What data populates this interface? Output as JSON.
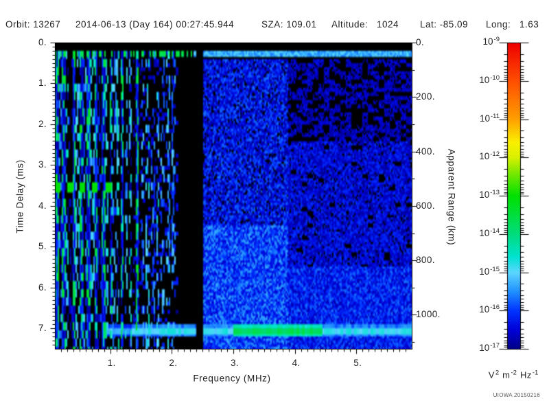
{
  "header": {
    "segments": [
      "Orbit: 13267",
      "2014-06-13 (Day 164) 00:27:45.944",
      "SZA: 109.01",
      "Altitude:   1024",
      "Lat: -85.09",
      "Long:   1.63"
    ]
  },
  "footer": {
    "credit": "UIOWA 20150216"
  },
  "chart_data": {
    "type": "heatmap",
    "title": "",
    "xlabel": "Frequency (MHz)",
    "ylabel_left": "Time Delay (ms)",
    "ylabel_right": "Apparent Range (km)",
    "x_range_mhz": [
      0.1,
      5.9
    ],
    "x_major_ticks": [
      1,
      2,
      3,
      4,
      5
    ],
    "x_tick_labels": [
      "1.",
      "2.",
      "3.",
      "4.",
      "5."
    ],
    "x_minor_step_mhz": 0.1,
    "y_range_ms": [
      0,
      7.5
    ],
    "y_major_ticks_ms": [
      0,
      1,
      2,
      3,
      4,
      5,
      6,
      7
    ],
    "y_tick_labels": [
      "0.",
      "1.",
      "2.",
      "3.",
      "4.",
      "5.",
      "6.",
      "7."
    ],
    "y_minor_step_ms": 0.1,
    "y2_range_km": [
      0,
      1125
    ],
    "y2_major_ticks_km": [
      0,
      200,
      400,
      600,
      800,
      1000
    ],
    "y2_tick_labels": [
      "0.",
      "200.",
      "400.",
      "600.",
      "800.",
      "1000."
    ],
    "y2_minor_step_km": 100,
    "grid": false,
    "colorbar": {
      "scale": "log10",
      "range_exponents": [
        -17,
        -9
      ],
      "tick_exponents": [
        -9,
        -10,
        -11,
        -12,
        -13,
        -14,
        -15,
        -16,
        -17
      ],
      "tick_base": "10",
      "unit_parts": [
        [
          "V",
          "2"
        ],
        [
          "m",
          "-2"
        ],
        [
          "Hz",
          "-1"
        ]
      ],
      "colormap_stops": [
        [
          -17.0,
          "#000085"
        ],
        [
          -16.5,
          "#0000d8"
        ],
        [
          -16.0,
          "#0033ff"
        ],
        [
          -15.5,
          "#2090ff"
        ],
        [
          -15.0,
          "#5cd6ff"
        ],
        [
          -14.6,
          "#00e2d2"
        ],
        [
          -14.0,
          "#00dc7e"
        ],
        [
          -13.0,
          "#00e000"
        ],
        [
          -12.4,
          "#7ae800"
        ],
        [
          -12.0,
          "#d8f000"
        ],
        [
          -11.6,
          "#faf000"
        ],
        [
          -11.0,
          "#ffa000"
        ],
        [
          -10.0,
          "#ff4e00"
        ],
        [
          -9.0,
          "#ee0000"
        ]
      ],
      "below_min_color": "#000000"
    },
    "features": {
      "top_black_band_ms": [
        0,
        0.2
      ],
      "ionosphere_line": {
        "t_ms": [
          0.22,
          0.36
        ],
        "bright_to_mhz": 2.35,
        "bright_exp": -13.6,
        "faint_exp": -15.3
      },
      "interference_gap_mhz": [
        2.4,
        2.52
      ],
      "stripe_region": {
        "f_end_mhz": 2.1,
        "speckle_from_mhz": 1.38,
        "stripes": [
          [
            0.13,
            -13.0
          ],
          [
            0.19,
            -15.2
          ],
          [
            0.25,
            -13.2
          ],
          [
            0.3,
            -14.2
          ],
          [
            0.36,
            -16.2
          ],
          [
            0.42,
            -13.1
          ],
          [
            0.47,
            -14.5
          ],
          [
            0.53,
            -13.2
          ],
          [
            0.59,
            -15.0
          ],
          [
            0.65,
            -13.1
          ],
          [
            0.71,
            -14.4
          ],
          [
            0.77,
            -13.3
          ],
          [
            0.83,
            -15.8
          ],
          [
            0.89,
            -13.2
          ],
          [
            0.95,
            -14.4
          ],
          [
            1.01,
            -13.5
          ],
          [
            1.07,
            -14.9
          ],
          [
            1.13,
            -14.1
          ],
          [
            1.19,
            -13.4
          ],
          [
            1.26,
            -14.7
          ],
          [
            1.33,
            -14.0
          ],
          [
            1.44,
            -13.0
          ],
          [
            1.53,
            -14.9
          ],
          [
            1.61,
            -14.4
          ],
          [
            1.69,
            -15.1
          ],
          [
            1.77,
            -14.6
          ],
          [
            1.85,
            -15.0
          ],
          [
            1.94,
            -14.7
          ],
          [
            2.03,
            -14.9
          ]
        ]
      },
      "green_blob_row": {
        "t_ms": 3.55,
        "freqs_mhz": [
          0.14,
          0.35,
          0.55,
          0.75,
          0.97
        ],
        "exp": -13.05
      },
      "surface_echo": {
        "t_ms": [
          6.92,
          7.22
        ],
        "f_start_mhz": 0.95,
        "base_exp": -14.9,
        "bright_band_mhz": [
          3.0,
          4.45
        ],
        "bright_exp": -13.75
      },
      "noise_regions": [
        {
          "f_mhz": [
            2.52,
            3.9
          ],
          "t_ms": [
            0.4,
            4.5
          ],
          "base_exp": -16.9,
          "var": 2.0,
          "density": 0.8
        },
        {
          "f_mhz": [
            2.52,
            3.9
          ],
          "t_ms": [
            4.5,
            7.5
          ],
          "base_exp": -16.4,
          "var": 1.8,
          "density": 0.88
        },
        {
          "f_mhz": [
            3.9,
            5.9
          ],
          "t_ms": [
            0.4,
            2.4
          ],
          "base_exp": -17.0,
          "var": 1.1,
          "density": 0.18
        },
        {
          "f_mhz": [
            3.9,
            5.9
          ],
          "t_ms": [
            2.4,
            5.5
          ],
          "base_exp": -16.9,
          "var": 1.5,
          "density": 0.45
        },
        {
          "f_mhz": [
            3.9,
            5.9
          ],
          "t_ms": [
            5.5,
            7.5
          ],
          "base_exp": -16.6,
          "var": 1.6,
          "density": 0.6
        }
      ]
    }
  }
}
